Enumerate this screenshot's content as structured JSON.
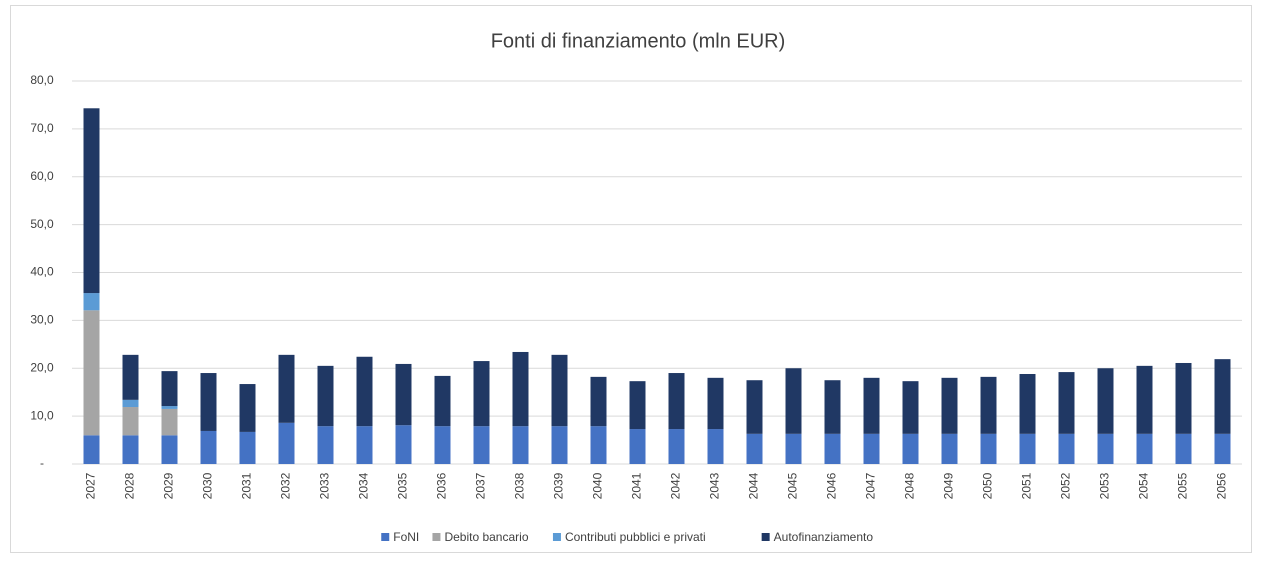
{
  "chart_data": {
    "type": "stacked_bar",
    "title": "Fonti di finanziamento (mln EUR)",
    "categories": [
      "2027",
      "2028",
      "2029",
      "2030",
      "2031",
      "2032",
      "2033",
      "2034",
      "2035",
      "2036",
      "2037",
      "2038",
      "2039",
      "2040",
      "2041",
      "2042",
      "2043",
      "2044",
      "2045",
      "2046",
      "2047",
      "2048",
      "2049",
      "2050",
      "2051",
      "2052",
      "2053",
      "2054",
      "2055",
      "2056"
    ],
    "series": [
      {
        "name": "FoNI",
        "color": "#4472c4",
        "values": [
          6.0,
          6.0,
          6.0,
          6.9,
          6.7,
          8.6,
          7.9,
          7.9,
          8.1,
          7.9,
          7.9,
          7.9,
          7.9,
          7.9,
          7.3,
          7.3,
          7.3,
          6.3,
          6.3,
          6.3,
          6.3,
          6.3,
          6.3,
          6.3,
          6.3,
          6.3,
          6.3,
          6.3,
          6.3,
          6.3
        ]
      },
      {
        "name": "Debito bancario",
        "color": "#a5a5a5",
        "values": [
          26.1,
          5.9,
          5.5,
          0,
          0,
          0,
          0,
          0,
          0,
          0,
          0,
          0,
          0,
          0,
          0,
          0,
          0,
          0,
          0,
          0,
          0,
          0,
          0,
          0,
          0,
          0,
          0,
          0,
          0,
          0
        ]
      },
      {
        "name": "Contributi pubblici e privati",
        "color": "#5b9bd5",
        "values": [
          3.6,
          1.5,
          0.6,
          0,
          0,
          0,
          0,
          0,
          0,
          0,
          0,
          0,
          0,
          0,
          0,
          0,
          0,
          0,
          0,
          0,
          0,
          0,
          0,
          0,
          0,
          0,
          0,
          0,
          0,
          0
        ]
      },
      {
        "name": "Autofinanziamento",
        "color": "#203864",
        "values": [
          38.6,
          9.4,
          7.3,
          12.1,
          10.0,
          14.2,
          12.6,
          14.5,
          12.8,
          10.5,
          13.6,
          15.5,
          14.9,
          10.3,
          10.0,
          11.7,
          10.7,
          11.2,
          13.7,
          11.2,
          11.7,
          11.0,
          11.7,
          11.9,
          12.5,
          12.9,
          13.7,
          14.2,
          14.8,
          15.6
        ]
      }
    ],
    "ylim": [
      0,
      80
    ],
    "yticks": [
      {
        "value": 0,
        "label": "-"
      },
      {
        "value": 10,
        "label": "10,0"
      },
      {
        "value": 20,
        "label": "20,0"
      },
      {
        "value": 30,
        "label": "30,0"
      },
      {
        "value": 40,
        "label": "40,0"
      },
      {
        "value": 50,
        "label": "50,0"
      },
      {
        "value": 60,
        "label": "60,0"
      },
      {
        "value": 70,
        "label": "70,0"
      },
      {
        "value": 80,
        "label": "80,0"
      }
    ],
    "grid": true
  }
}
